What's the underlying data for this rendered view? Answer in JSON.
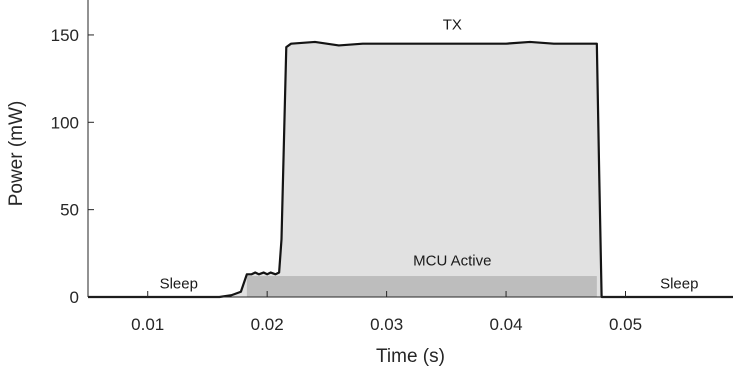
{
  "chart_data": {
    "type": "area",
    "xlabel": "Time (s)",
    "ylabel": "Power (mW)",
    "xlim": [
      0.005,
      0.059
    ],
    "ylim": [
      0,
      170
    ],
    "xticks": [
      0.01,
      0.02,
      0.03,
      0.04,
      0.05
    ],
    "xtick_labels": [
      "0.01",
      "0.02",
      "0.03",
      "0.04",
      "0.05"
    ],
    "yticks": [
      0,
      50,
      100,
      150
    ],
    "ytick_labels": [
      "0",
      "50",
      "100",
      "150"
    ],
    "grid": false,
    "series": [
      {
        "x": [
          0.005,
          0.016,
          0.017,
          0.0178,
          0.0183,
          0.0187,
          0.019,
          0.0193,
          0.0197,
          0.02,
          0.0203,
          0.0207,
          0.021,
          0.0212,
          0.0216,
          0.022,
          0.024,
          0.026,
          0.028,
          0.03,
          0.032,
          0.034,
          0.036,
          0.038,
          0.04,
          0.042,
          0.044,
          0.046,
          0.0476,
          0.0478,
          0.048,
          0.051,
          0.059
        ],
        "y": [
          0,
          0,
          1,
          3,
          13,
          13,
          14,
          13,
          14,
          13,
          14,
          13,
          14,
          33,
          143,
          145,
          146,
          144,
          145,
          145,
          145,
          145,
          145,
          145,
          145,
          146,
          145,
          145,
          145,
          70,
          0,
          0,
          0
        ]
      },
      {
        "x": [
          0.0183,
          0.0476
        ],
        "y": [
          12,
          12
        ]
      }
    ],
    "annotations": [
      {
        "text": "TX",
        "x": 0.0355,
        "y": 153
      },
      {
        "text": "MCU Active",
        "x": 0.0355,
        "y": 18
      },
      {
        "text": "Sleep",
        "x": 0.0126,
        "y": 5
      },
      {
        "text": "Sleep",
        "x": 0.0545,
        "y": 5
      }
    ],
    "colors": {
      "line": "#141414",
      "tx_fill": "#e1e1e1",
      "mcu_fill": "#bdbdbd",
      "axis": "#262626"
    }
  }
}
